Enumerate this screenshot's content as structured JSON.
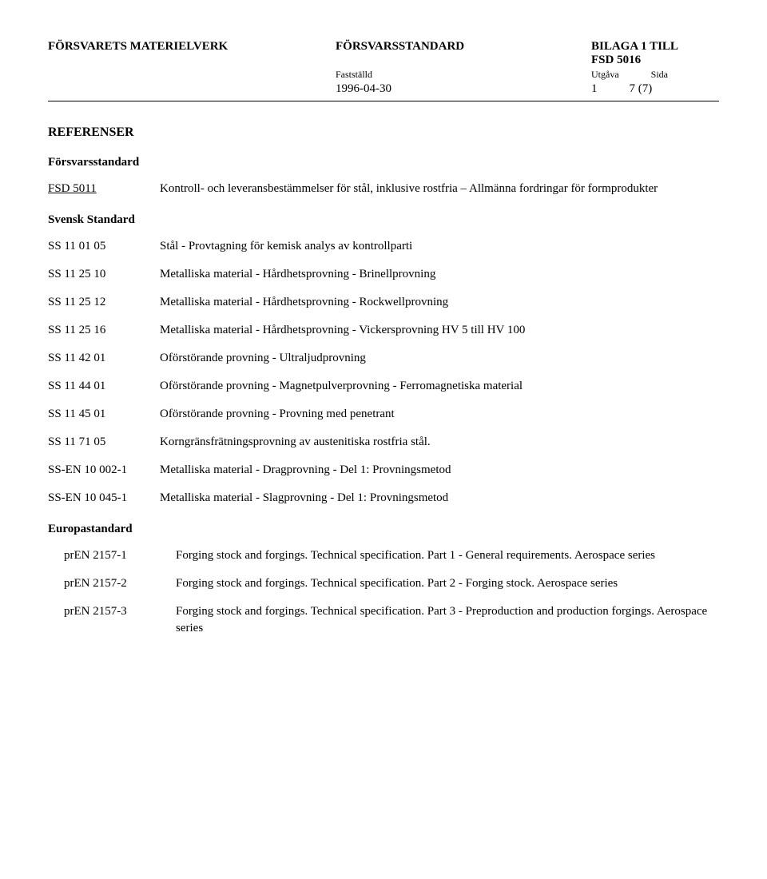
{
  "header": {
    "org": "FÖRSVARETS MATERIELVERK",
    "title": "FÖRSVARSSTANDARD",
    "appendix": "BILAGA 1 TILL",
    "fsd": "FSD 5016",
    "date_label": "Fastställd",
    "edition_label": "Utgåva",
    "page_label": "Sida",
    "date": "1996-04-30",
    "edition": "1",
    "page": "7 (7)"
  },
  "section_title": "REFERENSER",
  "groups": [
    {
      "heading": "Försvarsstandard",
      "indent": false,
      "items": [
        {
          "key": "FSD 5011",
          "underline": true,
          "val": "Kontroll- och leveransbestämmelser för stål, inklusive rostfria – Allmänna fordringar för formprodukter"
        }
      ]
    },
    {
      "heading": "Svensk Standard",
      "indent": false,
      "items": [
        {
          "key": "SS 11 01 05",
          "val": "Stål - Provtagning för kemisk analys av kontrollparti"
        },
        {
          "key": "SS 11 25 10",
          "val": "Metalliska material - Hårdhetsprovning - Brinellprovning"
        },
        {
          "key": "SS 11 25 12",
          "val": "Metalliska material - Hårdhetsprovning - Rockwellprovning"
        },
        {
          "key": "SS 11 25 16",
          "val": "Metalliska material - Hårdhetsprovning - Vickersprovning HV 5 till HV 100"
        },
        {
          "key": "SS 11 42 01",
          "val": "Oförstörande provning - Ultraljudprovning"
        },
        {
          "key": "SS 11 44 01",
          "val": "Oförstörande provning - Magnetpulverprovning - Ferromagnetiska material"
        },
        {
          "key": "SS 11 45 01",
          "val": "Oförstörande provning - Provning med penetrant"
        },
        {
          "key": "SS 11 71 05",
          "val": "Korngränsfrätningsprovning av austenitiska rostfria stål."
        },
        {
          "key": "SS-EN 10 002-1",
          "val": "Metalliska material - Dragprovning - Del 1: Provningsmetod"
        },
        {
          "key": "SS-EN 10 045-1",
          "val": "Metalliska material - Slagprovning - Del 1: Provningsmetod"
        }
      ]
    },
    {
      "heading": "Europastandard",
      "indent": true,
      "items": [
        {
          "key": "prEN 2157-1",
          "val": "Forging stock and forgings. Technical specification. Part 1 - General requirements. Aerospace series"
        },
        {
          "key": "prEN 2157-2",
          "val": "Forging stock and forgings. Technical specification. Part 2 - Forging stock. Aerospace series"
        },
        {
          "key": "prEN 2157-3",
          "val": "Forging stock and forgings. Technical specification. Part 3 - Preproduction and production forgings. Aerospace series"
        }
      ]
    }
  ]
}
